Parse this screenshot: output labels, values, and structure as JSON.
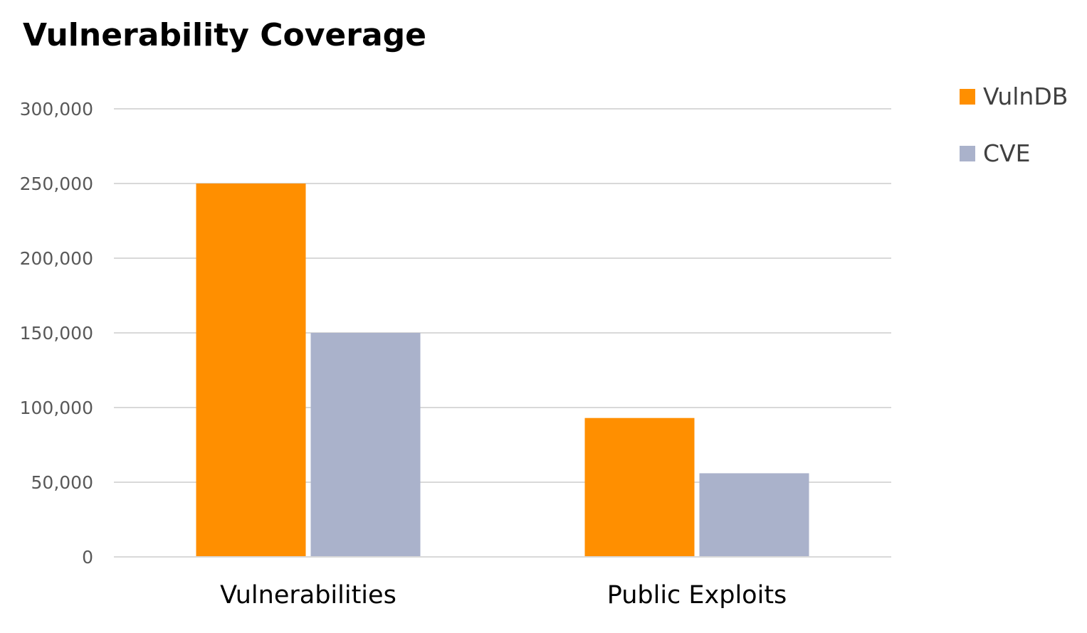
{
  "chart_data": {
    "type": "bar",
    "title": "Vulnerability Coverage",
    "categories": [
      "Vulnerabilities",
      "Public Exploits"
    ],
    "series": [
      {
        "name": "VulnDB",
        "values": [
          250000,
          93000
        ],
        "color": "#FF8F00"
      },
      {
        "name": "CVE",
        "values": [
          150000,
          56000
        ],
        "color": "#AAB2CB"
      }
    ],
    "y_ticks": [
      "0",
      "50,000",
      "100,000",
      "150,000",
      "200,000",
      "250,000",
      "300,000"
    ],
    "ylim": [
      0,
      300000
    ],
    "grid": true,
    "grid_color": "#D9D9D9",
    "legend_position": "top-right"
  }
}
